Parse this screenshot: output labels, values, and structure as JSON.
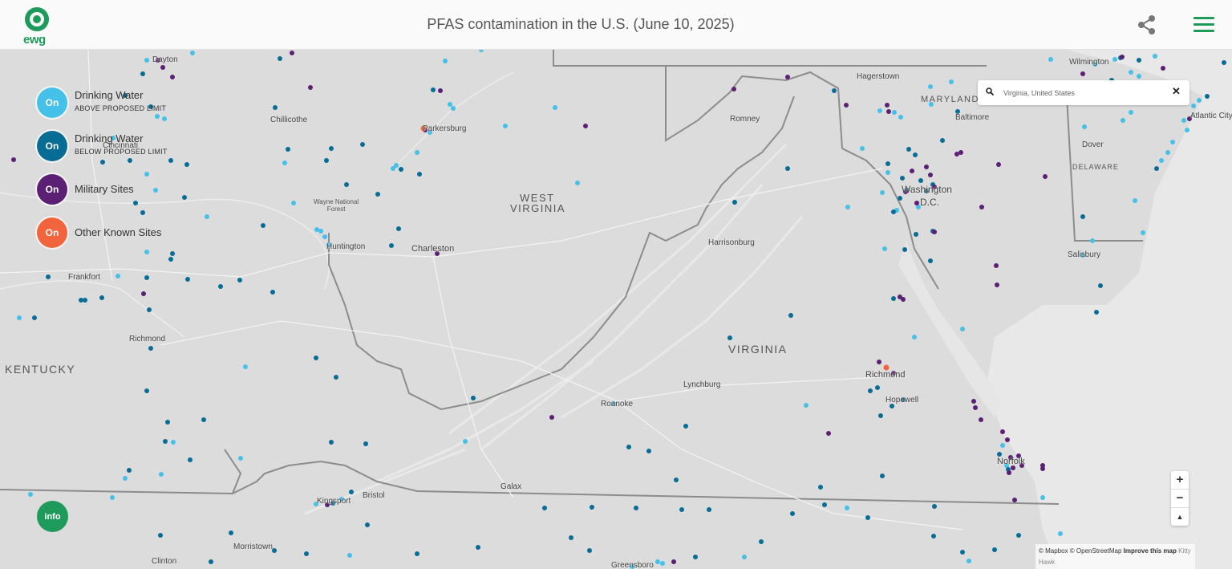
{
  "header": {
    "logo_text": "ewg",
    "title": "PFAS contamination in the U.S. (June 10, 2025)"
  },
  "legend": [
    {
      "toggle": "On",
      "label": "Drinking Water",
      "sublabel": "ABOVE PROPOSED LIMIT",
      "color": "#45c0e8"
    },
    {
      "toggle": "On",
      "label": "Drinking Water",
      "sublabel": "BELOW PROPOSED LIMIT",
      "color": "#086d94"
    },
    {
      "toggle": "On",
      "label": "Military Sites",
      "sublabel": "",
      "color": "#5b1f73"
    },
    {
      "toggle": "On",
      "label": "Other Known Sites",
      "sublabel": "",
      "color": "#f2643b"
    }
  ],
  "search": {
    "value": "Virginia, United States"
  },
  "zoom": {
    "in": "+",
    "out": "−",
    "compass": "▲"
  },
  "info_label": "info",
  "attribution": {
    "text": "© Mapbox © OpenStreetMap",
    "link": "Improve this map",
    "extra": "Kitty Hawk"
  },
  "states": {
    "west_virginia_1": "WEST",
    "west_virginia_2": "VIRGINIA",
    "virginia": "VIRGINIA",
    "kentucky": "KENTUCKY",
    "maryland": "MARYLAND",
    "delaware": "DELAWARE"
  },
  "places": {
    "dayton": "Dayton",
    "cincinnati": "Cincinnati",
    "chillicothe": "Chillicothe",
    "parkersburg": "Parkersburg",
    "hagerstown": "Hagerstown",
    "romney": "Romney",
    "baltimore": "Baltimore",
    "wilmington": "Wilmington",
    "atlantic_city": "Atlantic City",
    "dover": "Dover",
    "washington_1": "Washington",
    "washington_2": "D.C.",
    "huntington": "Huntington",
    "charleston": "Charleston",
    "harrisonburg": "Harrisonburg",
    "frankfort": "Frankfort",
    "salisbury": "Salisbury",
    "richmond_ky": "Richmond",
    "richmond_va": "Richmond",
    "hopewell": "Hopewell",
    "lynchburg": "Lynchburg",
    "roanoke": "Roanoke",
    "norfolk": "Norfolk",
    "galax": "Galax",
    "bristol": "Bristol",
    "kingsport": "Kingsport",
    "clinton": "Clinton",
    "morristown": "Morristown",
    "greensboro": "Greensboro",
    "wayne_forest": "Wayne National\nForest"
  }
}
